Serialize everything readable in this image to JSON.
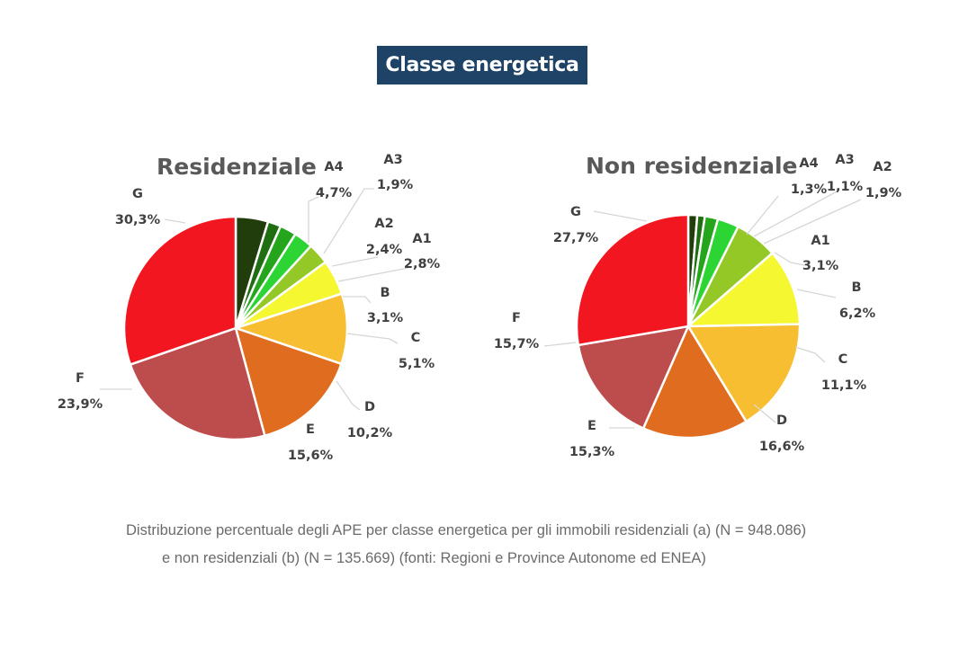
{
  "header": {
    "title": "Classe energetica"
  },
  "caption": {
    "line1": "Distribuzione percentuale degli APE per classe energetica per gli immobili residenziali (a) (N = 948.086)",
    "line2": "e non residenziali (b) (N = 135.669) (fonti: Regioni e Province Autonome ed ENEA)"
  },
  "colors": {
    "A4": "#213d0b",
    "A3": "#1f6e12",
    "A2": "#25a51c",
    "A1": "#2dd534",
    "B": "#93c826",
    "C": "#f5f731",
    "D": "#f8be32",
    "E": "#e06d1f",
    "F": "#bd4c4c",
    "G": "#f21620",
    "title_bg": "#1f4366"
  },
  "chart_data": [
    {
      "type": "pie",
      "title": "Residenziale",
      "categories": [
        "A4",
        "A3",
        "A2",
        "A1",
        "B",
        "C",
        "D",
        "E",
        "F",
        "G"
      ],
      "values": [
        4.7,
        1.9,
        2.4,
        2.8,
        3.1,
        5.1,
        10.2,
        15.6,
        23.9,
        30.3
      ],
      "value_labels": [
        "4,7%",
        "1,9%",
        "2,4%",
        "2,8%",
        "3,1%",
        "5,1%",
        "10,2%",
        "15,6%",
        "23,9%",
        "30,3%"
      ]
    },
    {
      "type": "pie",
      "title": "Non residenziale",
      "categories": [
        "A4",
        "A3",
        "A2",
        "A1",
        "B",
        "C",
        "D",
        "E",
        "F",
        "G"
      ],
      "values": [
        1.3,
        1.1,
        1.9,
        3.1,
        6.2,
        11.1,
        16.6,
        15.3,
        15.7,
        27.7
      ],
      "value_labels": [
        "1,3%",
        "1,1%",
        "1,9%",
        "3,1%",
        "6,2%",
        "11,1%",
        "16,6%",
        "15,3%",
        "15,7%",
        "27,7%"
      ]
    }
  ]
}
